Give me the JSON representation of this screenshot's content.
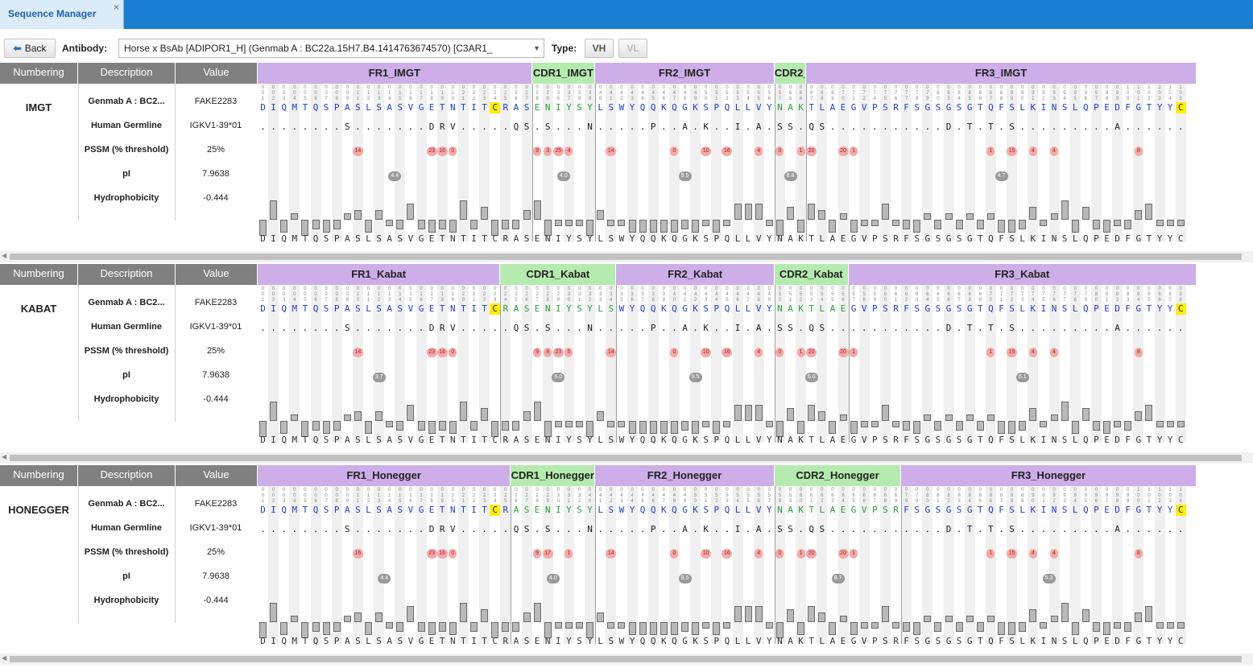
{
  "tab": {
    "title": "Sequence Manager",
    "close": "×"
  },
  "toolbar": {
    "back_label": "Back",
    "antibody_label": "Antibody:",
    "antibody_value": "Horse x BsAb [ADIPOR1_H] (Genmab A : BC22a.15H7.B4.1414763674570) [C3AR1_",
    "type_label": "Type:",
    "type_vh": "VH",
    "type_vl": "VL"
  },
  "headers": {
    "numbering": "Numbering",
    "description": "Description",
    "value": "Value"
  },
  "rows": [
    {
      "label": "Genmab A : BC2...",
      "value": "FAKE2283"
    },
    {
      "label": "Human Germline",
      "value": "IGKV1-39*01"
    },
    {
      "label": "PSSM (% threshold)",
      "value": "25%"
    },
    {
      "label": "pI",
      "value": "7.9638"
    },
    {
      "label": "Hydrophobicity",
      "value": "-0.444"
    }
  ],
  "sequence": "DIQMTQSPASLSASVGETNTITCRASENIYSYLSWYQQKQGKSPQLLVYNAKTLAEGVPSRFSGSGSGTQFSLKINSLQPEDFGTYYC",
  "germline": "........S.......DRV.....QS.S...N.....P..A.K..I.A.SS.QS...........D.T.T.S.........A....",
  "hydrophobicity": [
    -0.4,
    0.5,
    -0.3,
    0.1,
    -0.4,
    -0.2,
    -0.3,
    -0.2,
    0.1,
    0.2,
    -0.3,
    0.2,
    -0.1,
    -0.2,
    0.4,
    -0.2,
    -0.3,
    -0.2,
    -0.3,
    0.5,
    -0.2,
    0.3,
    -0.4,
    -0.2,
    -0.2,
    0.2,
    0.5,
    -0.4,
    -0.1,
    -0.1,
    -0.1,
    -0.4,
    0.2,
    -0.1,
    -0.1,
    -0.3,
    -0.3,
    -0.3,
    -0.3,
    -0.3,
    -0.2,
    -0.3,
    -0.1,
    -0.3,
    -0.1,
    0.4,
    0.4,
    0.4,
    -0.1,
    -0.4,
    0.3,
    -0.3,
    0.4,
    0.2,
    -0.3,
    0.1,
    -0.3,
    -0.1,
    -0.1,
    0.4,
    -0.1,
    -0.2,
    -0.3,
    0.1,
    -0.2,
    0.1,
    -0.2,
    0.1,
    -0.2,
    0.1,
    -0.3,
    -0.3,
    -0.2,
    0.3,
    -0.1,
    0.1,
    0.5,
    -0.3,
    0.3,
    -0.2,
    -0.3,
    -0.1,
    -0.2,
    0.2,
    0.4,
    -0.1,
    -0.1,
    -0.1,
    0.3
  ],
  "sections": [
    {
      "name": "IMGT",
      "regions": [
        {
          "label": "FR1_IMGT",
          "kind": "fr",
          "start": 0,
          "end": 26
        },
        {
          "label": "CDR1_IMGT",
          "kind": "cdr",
          "start": 26,
          "end": 32
        },
        {
          "label": "FR2_IMGT",
          "kind": "fr",
          "start": 32,
          "end": 49
        },
        {
          "label": "CDR2_",
          "kind": "cdr",
          "start": 49,
          "end": 52
        },
        {
          "label": "FR3_IMGT",
          "kind": "fr",
          "start": 52,
          "end": 89
        }
      ],
      "positions": [
        "001",
        "002",
        "003",
        "004",
        "005",
        "006",
        "007",
        "008",
        "009",
        "011",
        "012",
        "013",
        "014",
        "015",
        "016",
        "017",
        "018",
        "019",
        "020",
        "021",
        "022",
        "023",
        "024",
        "025",
        "026",
        "027",
        "028",
        "029",
        "036",
        "037",
        "038",
        "039",
        "040",
        "041",
        "042",
        "043",
        "044",
        "045",
        "046",
        "047",
        "048",
        "049",
        "050",
        "051",
        "052",
        "053",
        "054",
        "055",
        "056",
        "057",
        "065",
        "066",
        "067",
        "068",
        "069",
        "070",
        "071",
        "072",
        "074",
        "075",
        "076",
        "077",
        "078",
        "079",
        "080",
        "083",
        "084",
        "085",
        "086",
        "087",
        "088",
        "089",
        "090",
        "091",
        "092",
        "093",
        "094",
        "095",
        "096",
        "097",
        "098",
        "099",
        "100",
        "101",
        "102",
        "103",
        "104",
        "105",
        "106"
      ],
      "pssm": [
        {
          "i": 9,
          "v": "14"
        },
        {
          "i": 16,
          "v": "23"
        },
        {
          "i": 17,
          "v": "16"
        },
        {
          "i": 18,
          "v": "0"
        },
        {
          "i": 26,
          "v": "9"
        },
        {
          "i": 27,
          "v": "3"
        },
        {
          "i": 28,
          "v": "25"
        },
        {
          "i": 29,
          "v": "4"
        },
        {
          "i": 33,
          "v": "14"
        },
        {
          "i": 39,
          "v": "0"
        },
        {
          "i": 42,
          "v": "10"
        },
        {
          "i": 44,
          "v": "16"
        },
        {
          "i": 47,
          "v": "4"
        },
        {
          "i": 49,
          "v": "0"
        },
        {
          "i": 51,
          "v": "1"
        },
        {
          "i": 52,
          "v": "20"
        },
        {
          "i": 55,
          "v": "20"
        },
        {
          "i": 56,
          "v": "1"
        },
        {
          "i": 69,
          "v": "1"
        },
        {
          "i": 71,
          "v": "15"
        },
        {
          "i": 73,
          "v": "4"
        },
        {
          "i": 75,
          "v": "4"
        },
        {
          "i": 83,
          "v": "8"
        }
      ],
      "pi": [
        {
          "region": 0,
          "v": "4.4"
        },
        {
          "region": 1,
          "v": "4.0"
        },
        {
          "region": 2,
          "v": "9.5"
        },
        {
          "region": 3,
          "v": "8.8"
        },
        {
          "region": 4,
          "v": "4.7"
        }
      ]
    },
    {
      "name": "KABAT",
      "regions": [
        {
          "label": "FR1_Kabat",
          "kind": "fr",
          "start": 0,
          "end": 23
        },
        {
          "label": "CDR1_Kabat",
          "kind": "cdr",
          "start": 23,
          "end": 34
        },
        {
          "label": "FR2_Kabat",
          "kind": "fr",
          "start": 34,
          "end": 49
        },
        {
          "label": "CDR2_Kabat",
          "kind": "cdr",
          "start": 49,
          "end": 56
        },
        {
          "label": "FR3_Kabat",
          "kind": "fr",
          "start": 56,
          "end": 89
        }
      ],
      "positions": [
        "001",
        "002",
        "003",
        "004",
        "005",
        "006",
        "007",
        "008",
        "009",
        "010",
        "011",
        "012",
        "013",
        "014",
        "015",
        "016",
        "017",
        "018",
        "019",
        "020",
        "021",
        "022",
        "023",
        "024",
        "025",
        "026",
        "027",
        "028",
        "029",
        "030",
        "031",
        "032",
        "033",
        "034",
        "035",
        "036",
        "037",
        "038",
        "039",
        "040",
        "041",
        "042",
        "043",
        "044",
        "045",
        "046",
        "047",
        "048",
        "049",
        "050",
        "051",
        "052",
        "053",
        "054",
        "055",
        "056",
        "057",
        "058",
        "059",
        "060",
        "061",
        "062",
        "063",
        "064",
        "065",
        "066",
        "067",
        "068",
        "069",
        "070",
        "071",
        "072",
        "073",
        "074",
        "075",
        "076",
        "077",
        "078",
        "079",
        "080",
        "081",
        "082",
        "083",
        "084",
        "085",
        "086",
        "087",
        "088",
        "089"
      ],
      "pssm": [
        {
          "i": 9,
          "v": "14"
        },
        {
          "i": 16,
          "v": "23"
        },
        {
          "i": 17,
          "v": "16"
        },
        {
          "i": 18,
          "v": "0"
        },
        {
          "i": 26,
          "v": "9"
        },
        {
          "i": 27,
          "v": "8"
        },
        {
          "i": 28,
          "v": "23"
        },
        {
          "i": 29,
          "v": "5"
        },
        {
          "i": 33,
          "v": "14"
        },
        {
          "i": 39,
          "v": "0"
        },
        {
          "i": 42,
          "v": "10"
        },
        {
          "i": 44,
          "v": "16"
        },
        {
          "i": 47,
          "v": "4"
        },
        {
          "i": 49,
          "v": "0"
        },
        {
          "i": 51,
          "v": "1"
        },
        {
          "i": 52,
          "v": "20"
        },
        {
          "i": 55,
          "v": "20"
        },
        {
          "i": 56,
          "v": "1"
        },
        {
          "i": 69,
          "v": "1"
        },
        {
          "i": 71,
          "v": "15"
        },
        {
          "i": 73,
          "v": "4"
        },
        {
          "i": 75,
          "v": "4"
        },
        {
          "i": 83,
          "v": "8"
        }
      ],
      "pi": [
        {
          "region": 0,
          "v": "3.7"
        },
        {
          "region": 1,
          "v": "6.0"
        },
        {
          "region": 2,
          "v": "9.5"
        },
        {
          "region": 3,
          "v": "6.0"
        },
        {
          "region": 4,
          "v": "6.1"
        }
      ]
    },
    {
      "name": "HONEGGER",
      "regions": [
        {
          "label": "FR1_Honegger",
          "kind": "fr",
          "start": 0,
          "end": 24
        },
        {
          "label": "CDR1_Honegger",
          "kind": "cdr",
          "start": 24,
          "end": 32
        },
        {
          "label": "FR2_Honegger",
          "kind": "fr",
          "start": 32,
          "end": 49
        },
        {
          "label": "CDR2_Honegger",
          "kind": "cdr",
          "start": 49,
          "end": 61
        },
        {
          "label": "FR3_Honegger",
          "kind": "fr",
          "start": 61,
          "end": 89
        }
      ],
      "positions": [
        "001",
        "002",
        "003",
        "004",
        "005",
        "006",
        "007",
        "008",
        "009",
        "011",
        "012",
        "013",
        "014",
        "015",
        "016",
        "017",
        "018",
        "019",
        "020",
        "021",
        "022",
        "023",
        "024",
        "025",
        "026",
        "027",
        "028",
        "029",
        "030",
        "031",
        "032",
        "040",
        "041",
        "042",
        "043",
        "044",
        "045",
        "046",
        "047",
        "048",
        "049",
        "050",
        "051",
        "052",
        "053",
        "054",
        "055",
        "056",
        "057",
        "058",
        "059",
        "060",
        "061",
        "062",
        "063",
        "064",
        "065",
        "066",
        "067",
        "068",
        "069",
        "078",
        "079",
        "080",
        "081",
        "082",
        "083",
        "084",
        "085",
        "086",
        "087",
        "088",
        "089",
        "090",
        "091",
        "092",
        "093",
        "094",
        "095",
        "096",
        "097",
        "098",
        "099",
        "100",
        "101",
        "102",
        "103",
        "104",
        "105"
      ],
      "pssm": [
        {
          "i": 9,
          "v": "16"
        },
        {
          "i": 16,
          "v": "23"
        },
        {
          "i": 17,
          "v": "16"
        },
        {
          "i": 18,
          "v": "0"
        },
        {
          "i": 26,
          "v": "9"
        },
        {
          "i": 27,
          "v": "17"
        },
        {
          "i": 29,
          "v": "1"
        },
        {
          "i": 33,
          "v": "14"
        },
        {
          "i": 39,
          "v": "0"
        },
        {
          "i": 42,
          "v": "10"
        },
        {
          "i": 44,
          "v": "16"
        },
        {
          "i": 47,
          "v": "4"
        },
        {
          "i": 49,
          "v": "0"
        },
        {
          "i": 51,
          "v": "1"
        },
        {
          "i": 52,
          "v": "20"
        },
        {
          "i": 55,
          "v": "20"
        },
        {
          "i": 56,
          "v": "1"
        },
        {
          "i": 69,
          "v": "1"
        },
        {
          "i": 71,
          "v": "15"
        },
        {
          "i": 73,
          "v": "4"
        },
        {
          "i": 75,
          "v": "4"
        },
        {
          "i": 83,
          "v": "8"
        }
      ],
      "pi": [
        {
          "region": 0,
          "v": "4.4"
        },
        {
          "region": 1,
          "v": "4.0"
        },
        {
          "region": 2,
          "v": "8.5"
        },
        {
          "region": 3,
          "v": "8.7"
        },
        {
          "region": 4,
          "v": "5.3"
        }
      ]
    }
  ]
}
